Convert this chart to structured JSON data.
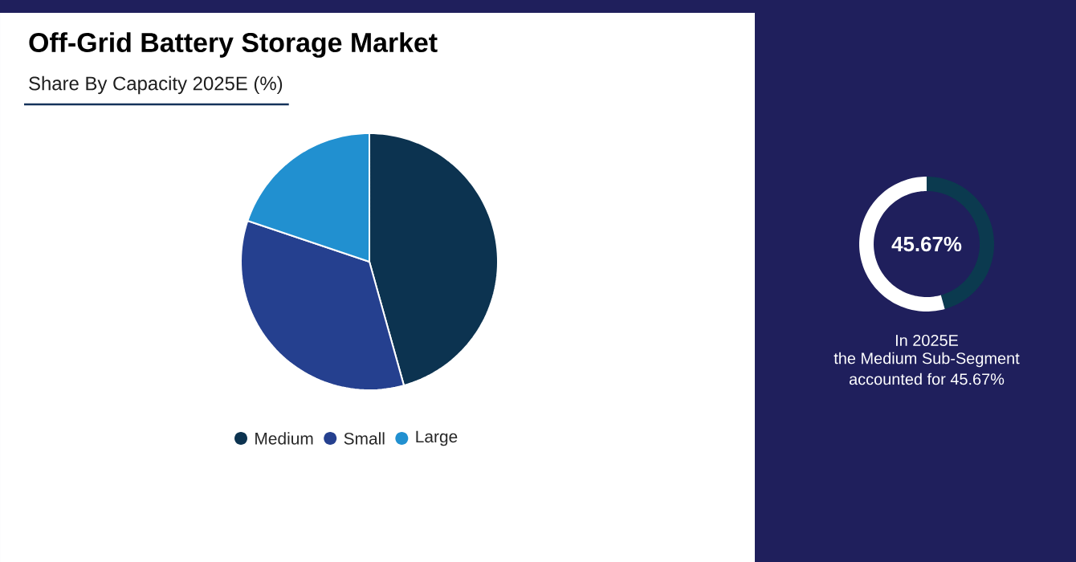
{
  "chart_data": [
    {
      "type": "pie",
      "title": "Off-Grid Battery Storage Market",
      "subtitle": "Share By Capacity 2025E (%)",
      "categories": [
        "Medium",
        "Small",
        "Large"
      ],
      "values": [
        45.67,
        34.5,
        19.83
      ],
      "colors": [
        "#0c3350",
        "#25408f",
        "#2190d0"
      ],
      "legend": "bottom"
    },
    {
      "type": "donut",
      "categories": [
        null,
        null
      ],
      "values": [
        45.67,
        54.33
      ],
      "colors": [
        "#0b3a4f",
        "#ffffff"
      ],
      "annotations": [
        "45.67%",
        "In 2025E",
        "the Medium Sub-Segment",
        "accounted for 45.67%"
      ]
    }
  ]
}
